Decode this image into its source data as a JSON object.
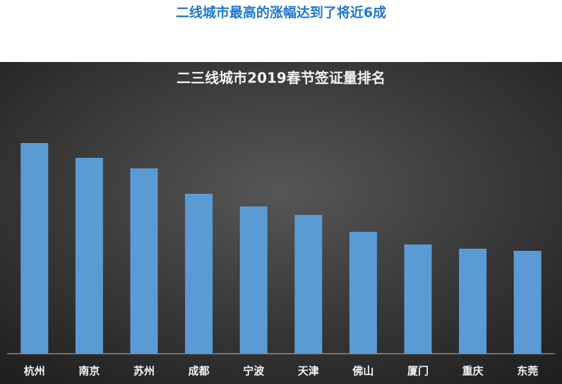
{
  "header": {
    "title": "二线城市最高的涨幅达到了将近6成"
  },
  "chart_data": {
    "type": "bar",
    "title": "二三线城市2019春节签证量排名",
    "categories": [
      "杭州",
      "南京",
      "苏州",
      "成都",
      "宁波",
      "天津",
      "佛山",
      "厦门",
      "重庆",
      "东莞"
    ],
    "values": [
      299,
      278,
      263,
      227,
      209,
      197,
      173,
      155,
      149,
      146
    ],
    "color": "#5b9bd5",
    "ylim": [
      0,
      300
    ]
  }
}
